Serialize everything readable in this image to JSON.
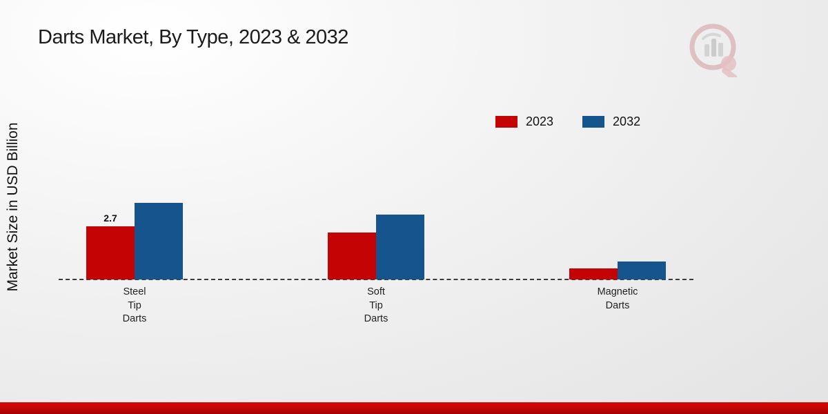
{
  "chart_data": {
    "type": "bar",
    "title": "Darts Market, By Type, 2023 & 2032",
    "ylabel": "Market Size in USD Billion",
    "categories": [
      "Steel\nTip\nDarts",
      "Soft\nTip\nDarts",
      "Magnetic\nDarts"
    ],
    "series": [
      {
        "name": "2023",
        "color": "#c40404",
        "values": [
          2.7,
          2.4,
          0.55
        ]
      },
      {
        "name": "2032",
        "color": "#15548c",
        "values": [
          3.9,
          3.3,
          0.9
        ]
      }
    ],
    "annotations": [
      {
        "series_index": 0,
        "category_index": 0,
        "text": "2.7"
      }
    ],
    "ylim": [
      0,
      4
    ],
    "grid": false,
    "legend_position": "top-right",
    "baseline_style": "dashed",
    "units": "USD Billion"
  },
  "branding": {
    "logo_name": "market-research-future-watermark"
  }
}
